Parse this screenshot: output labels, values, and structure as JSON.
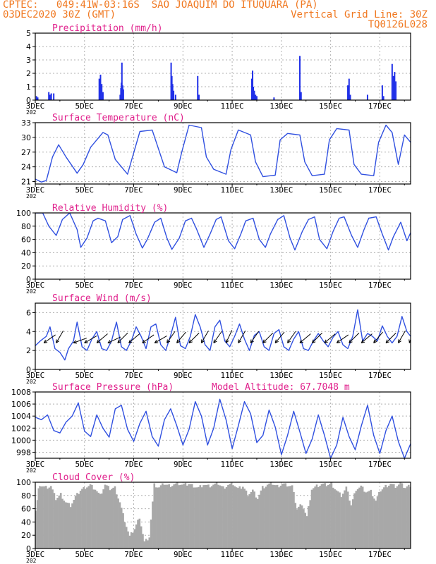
{
  "header": {
    "line1": "CPTEC:   049:41W-03:16S  SAO JOAQUIM DO ITUQUARA (PA)",
    "date": "03DEC2020 30Z (GMT)",
    "grid_note": "Vertical Grid Line: 30Z",
    "code": "TQ0126L028",
    "color": "#f07820"
  },
  "colors": {
    "title": "#e0208c",
    "line": "#3050e0",
    "bar": "#2030e8",
    "cloud": "#a8a8a8",
    "wind": "#000000"
  },
  "x_ticks": [
    "3DEC",
    "5DEC",
    "7DEC",
    "9DEC",
    "11DEC",
    "13DEC",
    "15DEC",
    "17DEC"
  ],
  "x_stub": "202",
  "chart_data": [
    {
      "id": "precip",
      "type": "bar",
      "title": "Precipitation (mm/h)",
      "ylim": [
        0,
        5
      ],
      "yticks": [
        "0",
        "1",
        "2",
        "3",
        "4",
        "5"
      ],
      "x_unit": "days since 3DEC2020 00Z",
      "xlim": [
        0,
        15.25
      ],
      "points": [
        [
          0.05,
          0.3
        ],
        [
          0.1,
          0.2
        ],
        [
          0.55,
          0.6
        ],
        [
          0.6,
          0.4
        ],
        [
          0.65,
          0.5
        ],
        [
          0.75,
          0.5
        ],
        [
          2.6,
          1.6
        ],
        [
          2.62,
          1.0
        ],
        [
          2.65,
          1.9
        ],
        [
          2.7,
          1.2
        ],
        [
          2.75,
          0.6
        ],
        [
          3.45,
          0.4
        ],
        [
          3.48,
          0.9
        ],
        [
          3.5,
          1.3
        ],
        [
          3.52,
          2.8
        ],
        [
          3.55,
          1.1
        ],
        [
          3.58,
          0.8
        ],
        [
          5.52,
          2.8
        ],
        [
          5.55,
          1.8
        ],
        [
          5.58,
          1.2
        ],
        [
          5.62,
          0.7
        ],
        [
          5.7,
          0.4
        ],
        [
          6.6,
          1.8
        ],
        [
          6.65,
          0.4
        ],
        [
          8.8,
          1.6
        ],
        [
          8.83,
          2.2
        ],
        [
          8.86,
          1.0
        ],
        [
          8.9,
          0.7
        ],
        [
          8.95,
          0.4
        ],
        [
          9.0,
          0.3
        ],
        [
          9.7,
          0.2
        ],
        [
          10.75,
          3.3
        ],
        [
          10.8,
          0.6
        ],
        [
          12.7,
          1.1
        ],
        [
          12.75,
          1.6
        ],
        [
          12.8,
          0.4
        ],
        [
          13.5,
          0.4
        ],
        [
          14.1,
          1.1
        ],
        [
          14.15,
          0.3
        ],
        [
          14.5,
          2.7
        ],
        [
          14.55,
          1.8
        ],
        [
          14.6,
          2.1
        ],
        [
          14.65,
          1.4
        ]
      ]
    },
    {
      "id": "temp",
      "type": "line",
      "title": "Surface Temperature (nC)",
      "ylim": [
        20.5,
        33
      ],
      "yticks": [
        "21",
        "24",
        "27",
        "30",
        "33"
      ],
      "xlim": [
        0,
        15.25
      ],
      "x": [
        0,
        0.25,
        0.45,
        0.7,
        0.95,
        1.25,
        1.7,
        1.95,
        2.25,
        2.75,
        2.95,
        3.25,
        3.75,
        3.95,
        4.25,
        4.75,
        4.95,
        5.25,
        5.75,
        5.95,
        6.25,
        6.75,
        6.95,
        7.25,
        7.75,
        7.95,
        8.25,
        8.75,
        8.95,
        9.25,
        9.75,
        9.95,
        10.25,
        10.75,
        10.95,
        11.25,
        11.75,
        11.95,
        12.25,
        12.75,
        12.95,
        13.25,
        13.75,
        13.95,
        14.25,
        14.5,
        14.75,
        15,
        15.25
      ],
      "y": [
        21.5,
        20.9,
        21.2,
        26.0,
        28.5,
        26.0,
        22.7,
        24.5,
        28.0,
        31.0,
        30.5,
        25.5,
        22.5,
        26.0,
        31.2,
        31.5,
        28.5,
        24.0,
        22.8,
        27.0,
        32.5,
        32.0,
        26.0,
        23.5,
        22.5,
        27.5,
        31.5,
        30.5,
        25.0,
        22.0,
        22.3,
        29.5,
        30.8,
        30.5,
        25.0,
        22.2,
        22.5,
        29.5,
        31.8,
        31.5,
        24.5,
        22.5,
        22.2,
        29.0,
        32.5,
        31.0,
        24.5,
        30.5,
        29.0
      ]
    },
    {
      "id": "rh",
      "type": "line",
      "title": "Relative Humidity (%)",
      "ylim": [
        0,
        100
      ],
      "yticks": [
        "0",
        "20",
        "40",
        "60",
        "80",
        "100"
      ],
      "xlim": [
        0,
        15.25
      ],
      "x": [
        0,
        0.3,
        0.55,
        0.85,
        1.1,
        1.4,
        1.7,
        1.85,
        2.1,
        2.35,
        2.55,
        2.85,
        3.1,
        3.35,
        3.55,
        3.85,
        4.1,
        4.35,
        4.55,
        4.85,
        5.1,
        5.35,
        5.55,
        5.85,
        6.1,
        6.35,
        6.55,
        6.85,
        7.1,
        7.35,
        7.55,
        7.85,
        8.1,
        8.35,
        8.55,
        8.85,
        9.1,
        9.35,
        9.55,
        9.85,
        10.1,
        10.35,
        10.55,
        10.85,
        11.1,
        11.35,
        11.55,
        11.85,
        12.1,
        12.35,
        12.55,
        12.85,
        13.1,
        13.35,
        13.55,
        13.85,
        14.1,
        14.35,
        14.55,
        14.85,
        15.1,
        15.25
      ],
      "y": [
        100,
        100,
        80,
        66,
        90,
        100,
        75,
        48,
        62,
        88,
        92,
        88,
        55,
        64,
        90,
        96,
        68,
        47,
        60,
        86,
        92,
        62,
        45,
        62,
        88,
        92,
        76,
        48,
        68,
        90,
        94,
        58,
        46,
        68,
        88,
        92,
        60,
        48,
        68,
        90,
        96,
        62,
        44,
        72,
        90,
        94,
        60,
        46,
        72,
        92,
        94,
        66,
        48,
        74,
        92,
        94,
        68,
        44,
        64,
        86,
        58,
        70
      ]
    },
    {
      "id": "wind",
      "type": "line",
      "title": "Surface Wind (m/s)",
      "ylim": [
        0,
        7
      ],
      "yticks": [
        "0",
        "2",
        "4",
        "6"
      ],
      "xlim": [
        0,
        15.25
      ],
      "x": [
        0,
        0.2,
        0.45,
        0.6,
        0.8,
        1.0,
        1.2,
        1.35,
        1.55,
        1.7,
        1.9,
        2.1,
        2.3,
        2.5,
        2.7,
        2.9,
        3.1,
        3.3,
        3.5,
        3.7,
        3.9,
        4.1,
        4.3,
        4.5,
        4.7,
        4.9,
        5.1,
        5.3,
        5.5,
        5.7,
        5.9,
        6.1,
        6.3,
        6.5,
        6.7,
        6.9,
        7.1,
        7.3,
        7.5,
        7.7,
        7.9,
        8.1,
        8.3,
        8.5,
        8.7,
        8.9,
        9.1,
        9.3,
        9.5,
        9.7,
        9.9,
        10.1,
        10.3,
        10.5,
        10.7,
        10.9,
        11.1,
        11.3,
        11.5,
        11.7,
        11.9,
        12.1,
        12.3,
        12.5,
        12.7,
        12.9,
        13.1,
        13.3,
        13.5,
        13.7,
        13.9,
        14.1,
        14.3,
        14.5,
        14.7,
        14.9,
        15.1,
        15.25
      ],
      "y": [
        2.5,
        3.0,
        3.5,
        4.5,
        2.2,
        1.8,
        1.0,
        2.2,
        3.0,
        5.0,
        2.4,
        2.0,
        3.2,
        4.0,
        2.2,
        2.0,
        3.0,
        5.0,
        2.4,
        2.0,
        3.0,
        4.5,
        3.5,
        2.2,
        4.5,
        4.8,
        2.6,
        2.0,
        3.6,
        5.5,
        2.5,
        2.2,
        3.5,
        5.8,
        4.5,
        2.6,
        2.0,
        4.5,
        5.2,
        3.0,
        2.4,
        3.5,
        4.8,
        3.2,
        2.0,
        3.6,
        4.0,
        2.4,
        2.0,
        3.8,
        4.2,
        2.4,
        2.0,
        3.2,
        4.0,
        2.2,
        2.0,
        3.0,
        3.8,
        3.0,
        2.4,
        3.4,
        4.0,
        2.6,
        2.2,
        3.5,
        6.3,
        3.0,
        3.8,
        3.5,
        3.0,
        4.6,
        3.5,
        2.8,
        3.5,
        5.6,
        4.0,
        3.5
      ],
      "barbs": [
        [
          0.35,
          35
        ],
        [
          0.85,
          60
        ],
        [
          1.55,
          20
        ],
        [
          2.0,
          30
        ],
        [
          2.5,
          40
        ],
        [
          2.95,
          25
        ],
        [
          3.35,
          45
        ],
        [
          3.8,
          40
        ],
        [
          4.35,
          35
        ],
        [
          4.85,
          30
        ],
        [
          5.35,
          55
        ],
        [
          5.75,
          50
        ],
        [
          6.25,
          45
        ],
        [
          6.75,
          60
        ],
        [
          7.25,
          55
        ],
        [
          7.75,
          65
        ],
        [
          8.25,
          60
        ],
        [
          8.75,
          55
        ],
        [
          9.25,
          45
        ],
        [
          9.75,
          50
        ],
        [
          10.25,
          55
        ],
        [
          10.75,
          40
        ],
        [
          11.25,
          45
        ],
        [
          11.75,
          40
        ],
        [
          12.25,
          35
        ],
        [
          12.75,
          45
        ],
        [
          13.25,
          40
        ],
        [
          13.75,
          50
        ],
        [
          14.25,
          45
        ],
        [
          14.75,
          60
        ],
        [
          15.2,
          70
        ]
      ]
    },
    {
      "id": "pres",
      "type": "line",
      "title": "Surface Pressure (hPa)",
      "annotation": "Model Altitude: 67.7048 m",
      "ylim": [
        997,
        1008
      ],
      "yticks": [
        "998",
        "1000",
        "1002",
        "1004",
        "1006",
        "1008"
      ],
      "xlim": [
        0,
        15.25
      ],
      "x": [
        0,
        0.25,
        0.5,
        0.75,
        1.0,
        1.25,
        1.5,
        1.75,
        2.0,
        2.25,
        2.5,
        2.75,
        3.0,
        3.25,
        3.5,
        3.75,
        4.0,
        4.25,
        4.5,
        4.75,
        5.0,
        5.25,
        5.5,
        5.75,
        6.0,
        6.25,
        6.5,
        6.75,
        7.0,
        7.25,
        7.5,
        7.75,
        8.0,
        8.25,
        8.5,
        8.75,
        9.0,
        9.25,
        9.5,
        9.75,
        10.0,
        10.25,
        10.5,
        10.75,
        11.0,
        11.25,
        11.5,
        11.75,
        12.0,
        12.25,
        12.5,
        12.75,
        13.0,
        13.25,
        13.5,
        13.75,
        14.0,
        14.25,
        14.5,
        14.75,
        15.0,
        15.25
      ],
      "y": [
        1003.8,
        1003.4,
        1004.2,
        1001.6,
        1001.2,
        1003.0,
        1004.0,
        1006.2,
        1001.5,
        1000.6,
        1004.2,
        1002.0,
        1000.5,
        1005.2,
        1005.8,
        1001.8,
        999.8,
        1002.8,
        1004.8,
        1000.6,
        999.0,
        1003.4,
        1005.2,
        1002.4,
        999.2,
        1001.8,
        1006.4,
        1004.0,
        999.2,
        1002.0,
        1006.8,
        1003.4,
        998.6,
        1002.4,
        1006.4,
        1004.4,
        999.6,
        1000.8,
        1005.0,
        1002.2,
        997.6,
        1000.8,
        1004.8,
        1001.4,
        997.8,
        1000.2,
        1004.2,
        1000.8,
        997.0,
        999.2,
        1003.8,
        1000.6,
        998.4,
        1002.4,
        1005.8,
        1000.8,
        997.8,
        1001.6,
        1004.0,
        999.8,
        997.0,
        999.4
      ]
    },
    {
      "id": "cloud",
      "type": "area",
      "title": "Cloud Cover (%)",
      "ylim": [
        0,
        100
      ],
      "yticks": [
        "0",
        "20",
        "40",
        "60",
        "80",
        "100"
      ],
      "xlim": [
        0,
        15.25
      ],
      "x": [
        0,
        0.1,
        0.2,
        0.4,
        0.6,
        0.8,
        1.0,
        1.2,
        1.4,
        1.6,
        1.8,
        2.0,
        2.2,
        2.4,
        2.6,
        2.8,
        3.0,
        3.2,
        3.4,
        3.6,
        3.8,
        4.0,
        4.2,
        4.4,
        4.6,
        4.8,
        5.0,
        5.2,
        5.4,
        5.6,
        5.8,
        6.0,
        6.2,
        6.4,
        6.6,
        6.8,
        7.0,
        7.2,
        7.4,
        7.6,
        7.8,
        8.0,
        8.2,
        8.4,
        8.6,
        8.8,
        9.0,
        9.2,
        9.4,
        9.6,
        9.8,
        10.0,
        10.2,
        10.4,
        10.6,
        10.8,
        11.0,
        11.2,
        11.4,
        11.6,
        11.8,
        12.0,
        12.2,
        12.4,
        12.6,
        12.8,
        13.0,
        13.2,
        13.4,
        13.6,
        13.8,
        14.0,
        14.2,
        14.4,
        14.6,
        14.8,
        15.0,
        15.2,
        15.25
      ],
      "y": [
        60,
        90,
        95,
        92,
        94,
        75,
        82,
        70,
        65,
        78,
        88,
        93,
        96,
        90,
        80,
        96,
        90,
        92,
        70,
        42,
        18,
        30,
        48,
        10,
        18,
        96,
        92,
        98,
        95,
        97,
        98,
        96,
        98,
        95,
        92,
        97,
        94,
        96,
        98,
        92,
        96,
        98,
        90,
        94,
        82,
        88,
        76,
        92,
        96,
        98,
        94,
        98,
        96,
        94,
        60,
        68,
        48,
        90,
        94,
        97,
        96,
        98,
        88,
        80,
        92,
        66,
        90,
        94,
        86,
        86,
        72,
        88,
        94,
        98,
        94,
        98,
        92,
        96,
        96
      ]
    }
  ]
}
